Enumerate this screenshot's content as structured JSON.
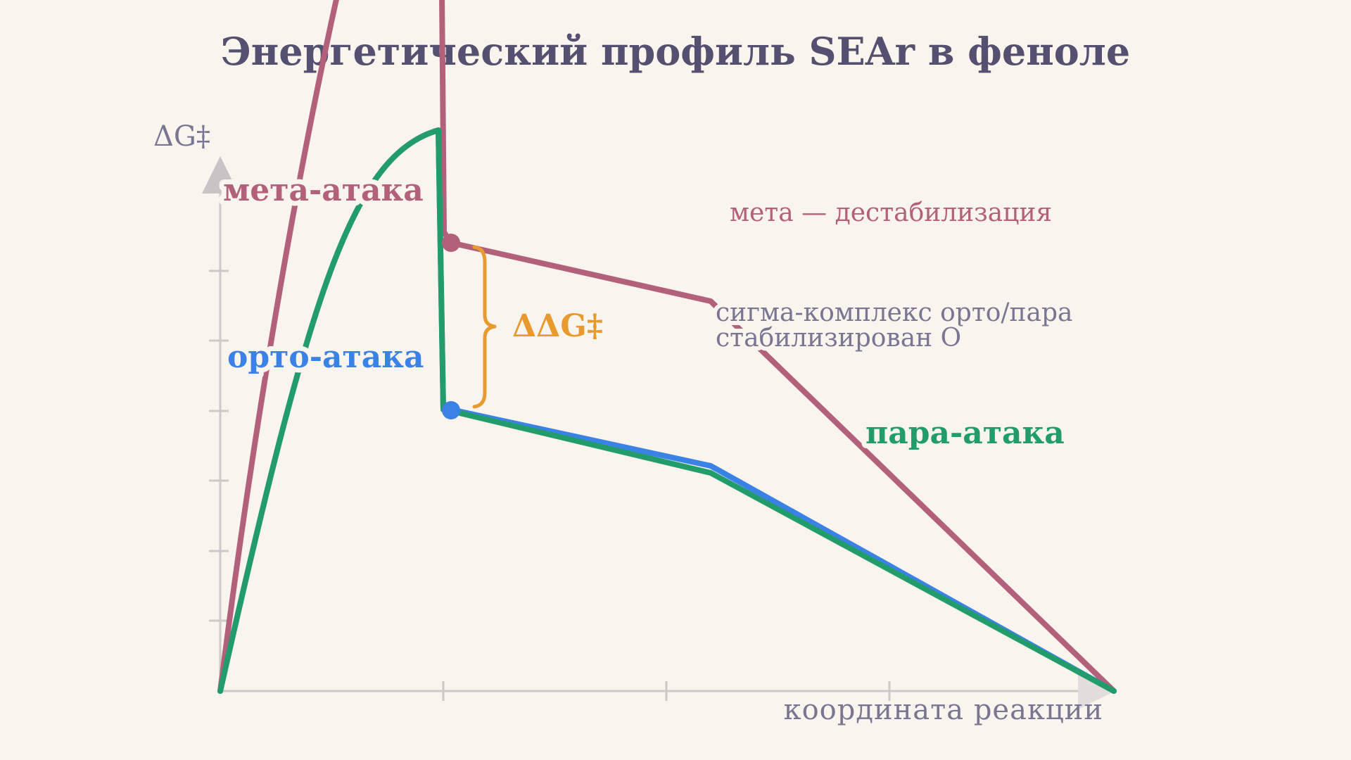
{
  "title": "Энергетический профиль SEAr в феноле",
  "axes": {
    "y_label": "ΔG‡",
    "x_label": "координата реакции"
  },
  "series_labels": {
    "meta": "мета-атака",
    "ortho": "орто-атака",
    "para": "пара-атака"
  },
  "annotations": {
    "delta": "ΔΔG‡",
    "meta_note": "мета — дестабилизация",
    "sigma_line1": "сигма-комплекс орто/пара",
    "sigma_line2": "стабилизирован O"
  },
  "colors": {
    "background": "#faf4ee",
    "title": "#55506f",
    "axis": "#cfc8c8",
    "axis_label": "#7a7592",
    "meta": "#b3607a",
    "ortho": "#3a82e6",
    "para": "#239c6b",
    "delta": "#e89a2e"
  }
}
